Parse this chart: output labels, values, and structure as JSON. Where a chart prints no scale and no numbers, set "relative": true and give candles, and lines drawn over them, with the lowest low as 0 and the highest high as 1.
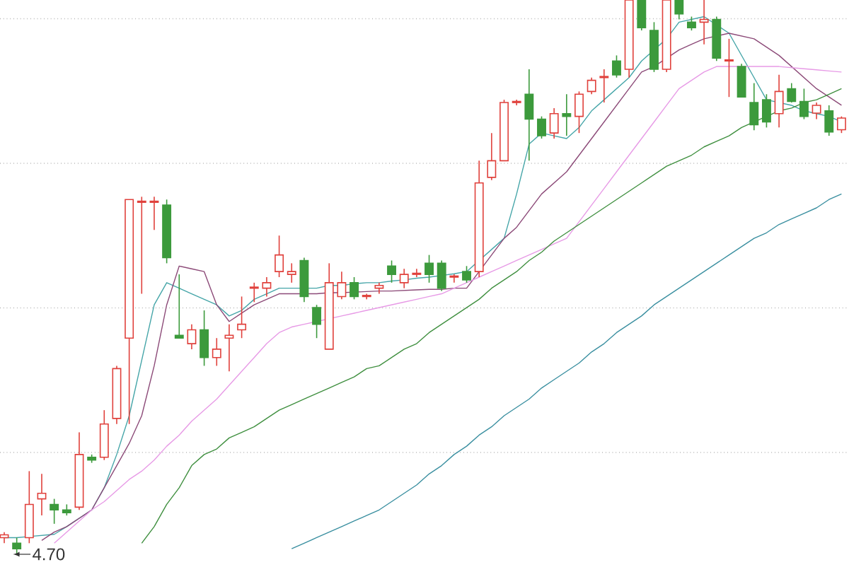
{
  "chart_data": {
    "type": "candlestick",
    "relative": true,
    "grid": "y",
    "categories": [
      null,
      null,
      null,
      null,
      null,
      null,
      null,
      null,
      null,
      null,
      null,
      null,
      null,
      null,
      null,
      null,
      null,
      null,
      null,
      null,
      null,
      null,
      null,
      null,
      null,
      null,
      null,
      null,
      null,
      null,
      null,
      null,
      null,
      null,
      null,
      null,
      null,
      null,
      null,
      null,
      null,
      null,
      null,
      null,
      null,
      null,
      null,
      null,
      null,
      null,
      null,
      null,
      null,
      null,
      null,
      null,
      null,
      null,
      null,
      null,
      null,
      null,
      null,
      null,
      null,
      null,
      null,
      null
    ],
    "colors": [
      "#e0413c",
      "#3c9a3c",
      "#e0413c",
      "#e0413c",
      "#3c9a3c",
      "#3c9a3c",
      "#e0413c",
      "#3c9a3c",
      "#e0413c",
      "#e0413c",
      "#e0413c",
      "#e0413c",
      "#e0413c",
      "#3c9a3c",
      "#3c9a3c",
      "#e0413c",
      "#3c9a3c",
      "#e0413c",
      "#e0413c",
      "#e0413c",
      "#e0413c",
      "#e0413c",
      "#e0413c",
      "#e0413c",
      "#3c9a3c",
      "#3c9a3c",
      "#e0413c",
      "#e0413c",
      "#3c9a3c",
      "#e0413c",
      "#e0413c",
      "#3c9a3c",
      "#e0413c",
      "#e0413c",
      "#3c9a3c",
      "#3c9a3c",
      "#e0413c",
      "#3c9a3c",
      "#e0413c",
      "#e0413c",
      "#e0413c",
      "#e0413c",
      "#3c9a3c",
      "#3c9a3c",
      "#e0413c",
      "#3c9a3c",
      "#e0413c",
      "#e0413c",
      "#e0413c",
      "#3c9a3c",
      "#e0413c",
      "#3c9a3c",
      "#3c9a3c",
      "#e0413c",
      "#3c9a3c",
      "#3c9a3c",
      "#e0413c",
      "#3c9a3c",
      "#e0413c",
      "#3c9a3c",
      "#3c9a3c",
      "#3c9a3c",
      "#e0413c",
      "#3c9a3c",
      "#3c9a3c",
      "#e0413c",
      "#3c9a3c",
      "#e0413c"
    ],
    "ohlc": [
      [
        0.03,
        0.04,
        0.02,
        0.035
      ],
      [
        0.02,
        0.03,
        0.0,
        0.01
      ],
      [
        0.03,
        0.15,
        0.02,
        0.09
      ],
      [
        0.1,
        0.145,
        0.07,
        0.11
      ],
      [
        0.09,
        0.1,
        0.055,
        0.08
      ],
      [
        0.08,
        0.09,
        0.07,
        0.075
      ],
      [
        0.085,
        0.22,
        0.08,
        0.18
      ],
      [
        0.175,
        0.18,
        0.165,
        0.17
      ],
      [
        0.175,
        0.26,
        0.17,
        0.235
      ],
      [
        0.245,
        0.34,
        0.235,
        0.335
      ],
      [
        0.39,
        0.64,
        0.235,
        0.64
      ],
      [
        0.635,
        0.645,
        0.47,
        0.637
      ],
      [
        0.635,
        0.645,
        0.585,
        0.637
      ],
      [
        0.63,
        0.64,
        0.525,
        0.535
      ],
      [
        0.395,
        0.505,
        0.39,
        0.39
      ],
      [
        0.38,
        0.415,
        0.37,
        0.405
      ],
      [
        0.405,
        0.44,
        0.34,
        0.355
      ],
      [
        0.355,
        0.39,
        0.34,
        0.37
      ],
      [
        0.39,
        0.415,
        0.33,
        0.395
      ],
      [
        0.405,
        0.465,
        0.39,
        0.415
      ],
      [
        0.48,
        0.49,
        0.455,
        0.482
      ],
      [
        0.48,
        0.5,
        0.465,
        0.49
      ],
      [
        0.51,
        0.575,
        0.5,
        0.54
      ],
      [
        0.505,
        0.525,
        0.49,
        0.51
      ],
      [
        0.53,
        0.535,
        0.455,
        0.465
      ],
      [
        0.445,
        0.45,
        0.39,
        0.415
      ],
      [
        0.37,
        0.525,
        0.37,
        0.49
      ],
      [
        0.465,
        0.51,
        0.46,
        0.49
      ],
      [
        0.49,
        0.5,
        0.46,
        0.465
      ],
      [
        0.465,
        0.47,
        0.46,
        0.467
      ],
      [
        0.48,
        0.49,
        0.47,
        0.485
      ],
      [
        0.52,
        0.53,
        0.49,
        0.505
      ],
      [
        0.49,
        0.515,
        0.48,
        0.505
      ],
      [
        0.505,
        0.515,
        0.5,
        0.507
      ],
      [
        0.525,
        0.54,
        0.49,
        0.505
      ],
      [
        0.525,
        0.53,
        0.475,
        0.48
      ],
      [
        0.5,
        0.505,
        0.49,
        0.502
      ],
      [
        0.51,
        0.52,
        0.49,
        0.495
      ],
      [
        0.51,
        0.71,
        0.5,
        0.67
      ],
      [
        0.68,
        0.76,
        0.675,
        0.71
      ],
      [
        0.71,
        0.82,
        0.71,
        0.815
      ],
      [
        0.815,
        0.82,
        0.81,
        0.817
      ],
      [
        0.83,
        0.875,
        0.71,
        0.785
      ],
      [
        0.785,
        0.79,
        0.75,
        0.755
      ],
      [
        0.76,
        0.805,
        0.75,
        0.795
      ],
      [
        0.795,
        0.83,
        0.755,
        0.79
      ],
      [
        0.79,
        0.835,
        0.76,
        0.83
      ],
      [
        0.835,
        0.86,
        0.83,
        0.855
      ],
      [
        0.86,
        0.875,
        0.815,
        0.862
      ],
      [
        0.89,
        0.9,
        0.86,
        0.865
      ],
      [
        0.875,
        1.0,
        0.86,
        1.0
      ],
      [
        1.0,
        1.0,
        0.945,
        0.95
      ],
      [
        0.945,
        0.96,
        0.87,
        0.875
      ],
      [
        0.875,
        1.0,
        0.87,
        1.0
      ],
      [
        1.0,
        1.0,
        0.965,
        0.975
      ],
      [
        0.96,
        0.97,
        0.945,
        0.95
      ],
      [
        0.96,
        1.0,
        0.92,
        0.965
      ],
      [
        0.965,
        0.97,
        0.89,
        0.895
      ],
      [
        0.89,
        0.93,
        0.825,
        0.892
      ],
      [
        0.88,
        0.885,
        0.825,
        0.825
      ],
      [
        0.815,
        0.85,
        0.765,
        0.775
      ],
      [
        0.82,
        0.83,
        0.77,
        0.78
      ],
      [
        0.795,
        0.865,
        0.77,
        0.835
      ],
      [
        0.84,
        0.85,
        0.815,
        0.817
      ],
      [
        0.817,
        0.84,
        0.785,
        0.79
      ],
      [
        0.796,
        0.815,
        0.785,
        0.81
      ],
      [
        0.8,
        0.81,
        0.755,
        0.762
      ],
      [
        0.766,
        0.79,
        0.76,
        0.787
      ]
    ],
    "series": [
      {
        "type": "line",
        "color": "#45a5a8",
        "values": [
          0.03,
          0.03,
          0.032,
          0.034,
          0.036,
          0.05,
          0.065,
          0.08,
          0.12,
          0.18,
          0.25,
          0.35,
          0.45,
          0.49,
          0.48,
          0.47,
          0.46,
          0.45,
          0.43,
          0.44,
          0.46,
          0.47,
          0.48,
          0.48,
          0.48,
          0.48,
          0.485,
          0.485,
          0.488,
          0.49,
          0.49,
          0.493,
          0.495,
          0.498,
          0.5,
          0.503,
          0.506,
          0.51,
          0.53,
          0.55,
          0.57,
          0.65,
          0.74,
          0.76,
          0.755,
          0.75,
          0.77,
          0.8,
          0.82,
          0.84,
          0.86,
          0.89,
          0.91,
          0.93,
          0.96,
          0.965,
          0.97,
          0.955,
          0.94,
          0.9,
          0.86,
          0.82,
          0.815,
          0.81,
          0.8,
          0.795,
          0.79,
          0.78
        ]
      },
      {
        "type": "line",
        "color": "#8c4a78",
        "values": [
          null,
          null,
          null,
          0.025,
          0.04,
          0.05,
          0.065,
          0.08,
          0.12,
          0.16,
          0.2,
          0.25,
          0.34,
          0.45,
          0.52,
          0.515,
          0.51,
          0.45,
          0.42,
          0.435,
          0.45,
          0.46,
          0.47,
          0.47,
          0.47,
          0.47,
          0.472,
          0.472,
          0.473,
          0.474,
          0.475,
          0.475,
          0.476,
          0.477,
          0.478,
          0.478,
          0.48,
          0.48,
          0.51,
          0.54,
          0.57,
          0.59,
          0.62,
          0.65,
          0.67,
          0.69,
          0.72,
          0.75,
          0.78,
          0.81,
          0.84,
          0.87,
          0.88,
          0.895,
          0.91,
          0.92,
          0.93,
          0.935,
          0.94,
          0.935,
          0.93,
          0.915,
          0.9,
          0.88,
          0.86,
          0.84,
          0.825,
          0.81
        ]
      },
      {
        "type": "line",
        "color": "#e79ae6",
        "values": [
          null,
          null,
          null,
          null,
          0.02,
          0.04,
          0.06,
          0.08,
          0.095,
          0.115,
          0.135,
          0.15,
          0.17,
          0.195,
          0.215,
          0.24,
          0.26,
          0.28,
          0.305,
          0.33,
          0.355,
          0.38,
          0.4,
          0.41,
          0.415,
          0.42,
          0.425,
          0.43,
          0.435,
          0.44,
          0.445,
          0.45,
          0.455,
          0.46,
          0.465,
          0.47,
          0.48,
          0.49,
          0.5,
          0.51,
          0.52,
          0.53,
          0.54,
          0.55,
          0.56,
          0.57,
          0.6,
          0.63,
          0.66,
          0.69,
          0.72,
          0.75,
          0.78,
          0.81,
          0.84,
          0.855,
          0.87,
          0.88,
          0.88,
          0.88,
          0.88,
          0.88,
          0.88,
          0.878,
          0.876,
          0.874,
          0.872,
          0.87
        ]
      },
      {
        "type": "line",
        "color": "#3f8f3f",
        "values": [
          null,
          null,
          null,
          null,
          null,
          null,
          null,
          null,
          null,
          null,
          null,
          0.02,
          0.05,
          0.09,
          0.12,
          0.16,
          0.18,
          0.19,
          0.21,
          0.22,
          0.23,
          0.245,
          0.26,
          0.27,
          0.28,
          0.29,
          0.3,
          0.31,
          0.32,
          0.335,
          0.34,
          0.355,
          0.37,
          0.38,
          0.4,
          0.415,
          0.43,
          0.445,
          0.46,
          0.48,
          0.495,
          0.51,
          0.53,
          0.545,
          0.565,
          0.58,
          0.595,
          0.61,
          0.625,
          0.64,
          0.655,
          0.67,
          0.685,
          0.7,
          0.71,
          0.72,
          0.735,
          0.745,
          0.755,
          0.77,
          0.78,
          0.79,
          0.8,
          0.805,
          0.815,
          0.82,
          0.83,
          0.84
        ]
      },
      {
        "type": "line",
        "color": "#3a8fa0",
        "values": [
          null,
          null,
          null,
          null,
          null,
          null,
          null,
          null,
          null,
          null,
          null,
          null,
          null,
          null,
          null,
          null,
          null,
          null,
          null,
          null,
          null,
          null,
          null,
          0.01,
          0.02,
          0.03,
          0.04,
          0.05,
          0.06,
          0.07,
          0.08,
          0.095,
          0.11,
          0.125,
          0.145,
          0.16,
          0.18,
          0.195,
          0.215,
          0.23,
          0.25,
          0.265,
          0.28,
          0.3,
          0.315,
          0.33,
          0.345,
          0.365,
          0.38,
          0.4,
          0.415,
          0.43,
          0.45,
          0.465,
          0.48,
          0.495,
          0.51,
          0.525,
          0.54,
          0.555,
          0.57,
          0.58,
          0.595,
          0.605,
          0.615,
          0.625,
          0.64,
          0.65
        ]
      }
    ],
    "annotations": [
      "4.70"
    ]
  }
}
